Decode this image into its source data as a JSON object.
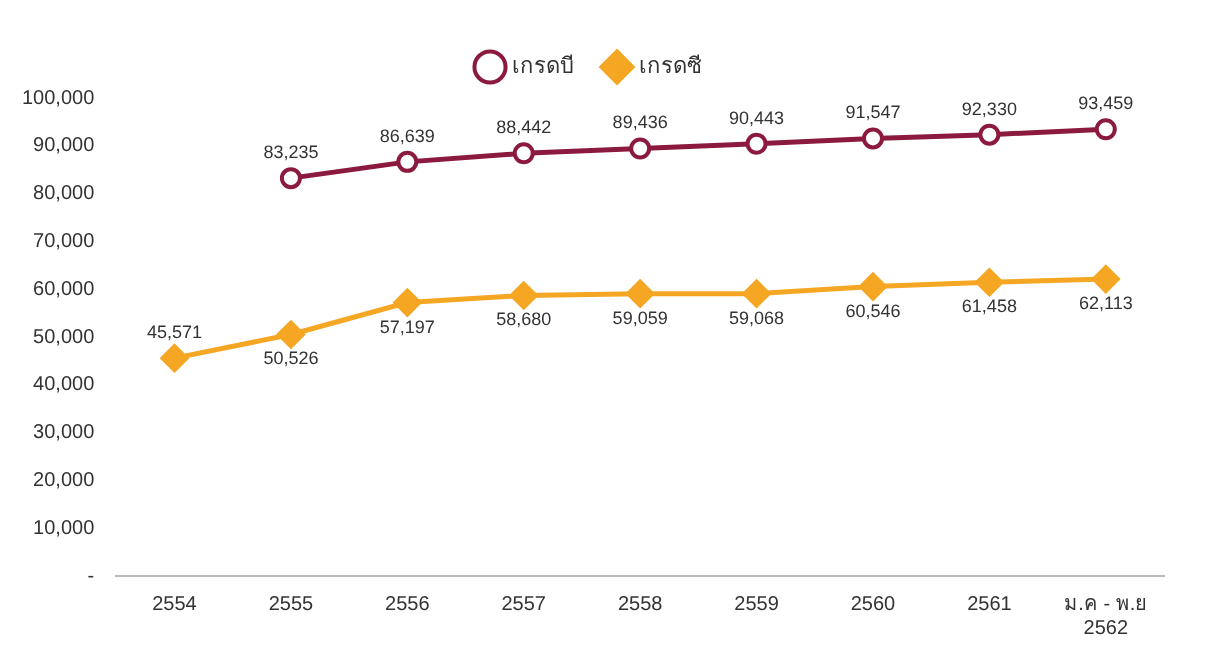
{
  "chart_data": {
    "type": "line",
    "categories": [
      "2554",
      "2555",
      "2556",
      "2557",
      "2558",
      "2559",
      "2560",
      "2561",
      "ม.ค - พ.ย 2562"
    ],
    "series": [
      {
        "name": "เกรดบี",
        "color": "#8b1a3e",
        "marker": "circle",
        "values": [
          null,
          83235,
          86639,
          88442,
          89436,
          90443,
          91547,
          92330,
          93459
        ],
        "value_labels": [
          null,
          "83,235",
          "86,639",
          "88,442",
          "89,436",
          "90,443",
          "91,547",
          "92,330",
          "93,459"
        ]
      },
      {
        "name": "เกรดซี",
        "color": "#f5a623",
        "marker": "diamond",
        "values": [
          45571,
          50526,
          57197,
          58680,
          59059,
          59068,
          60546,
          61458,
          62113
        ],
        "value_labels": [
          "45,571",
          "50,526",
          "57,197",
          "58,680",
          "59,059",
          "59,068",
          "60,546",
          "61,458",
          "62,113"
        ]
      }
    ],
    "ylim": [
      0,
      100000
    ],
    "yticks": [
      {
        "value": 0,
        "label": "-"
      },
      {
        "value": 10000,
        "label": "10,000"
      },
      {
        "value": 20000,
        "label": "20,000"
      },
      {
        "value": 30000,
        "label": "30,000"
      },
      {
        "value": 40000,
        "label": "40,000"
      },
      {
        "value": 50000,
        "label": "50,000"
      },
      {
        "value": 60000,
        "label": "60,000"
      },
      {
        "value": 70000,
        "label": "70,000"
      },
      {
        "value": 80000,
        "label": "80,000"
      },
      {
        "value": 90000,
        "label": "90,000"
      },
      {
        "value": 100000,
        "label": "100,000"
      }
    ],
    "grid": false,
    "legend": "top"
  }
}
